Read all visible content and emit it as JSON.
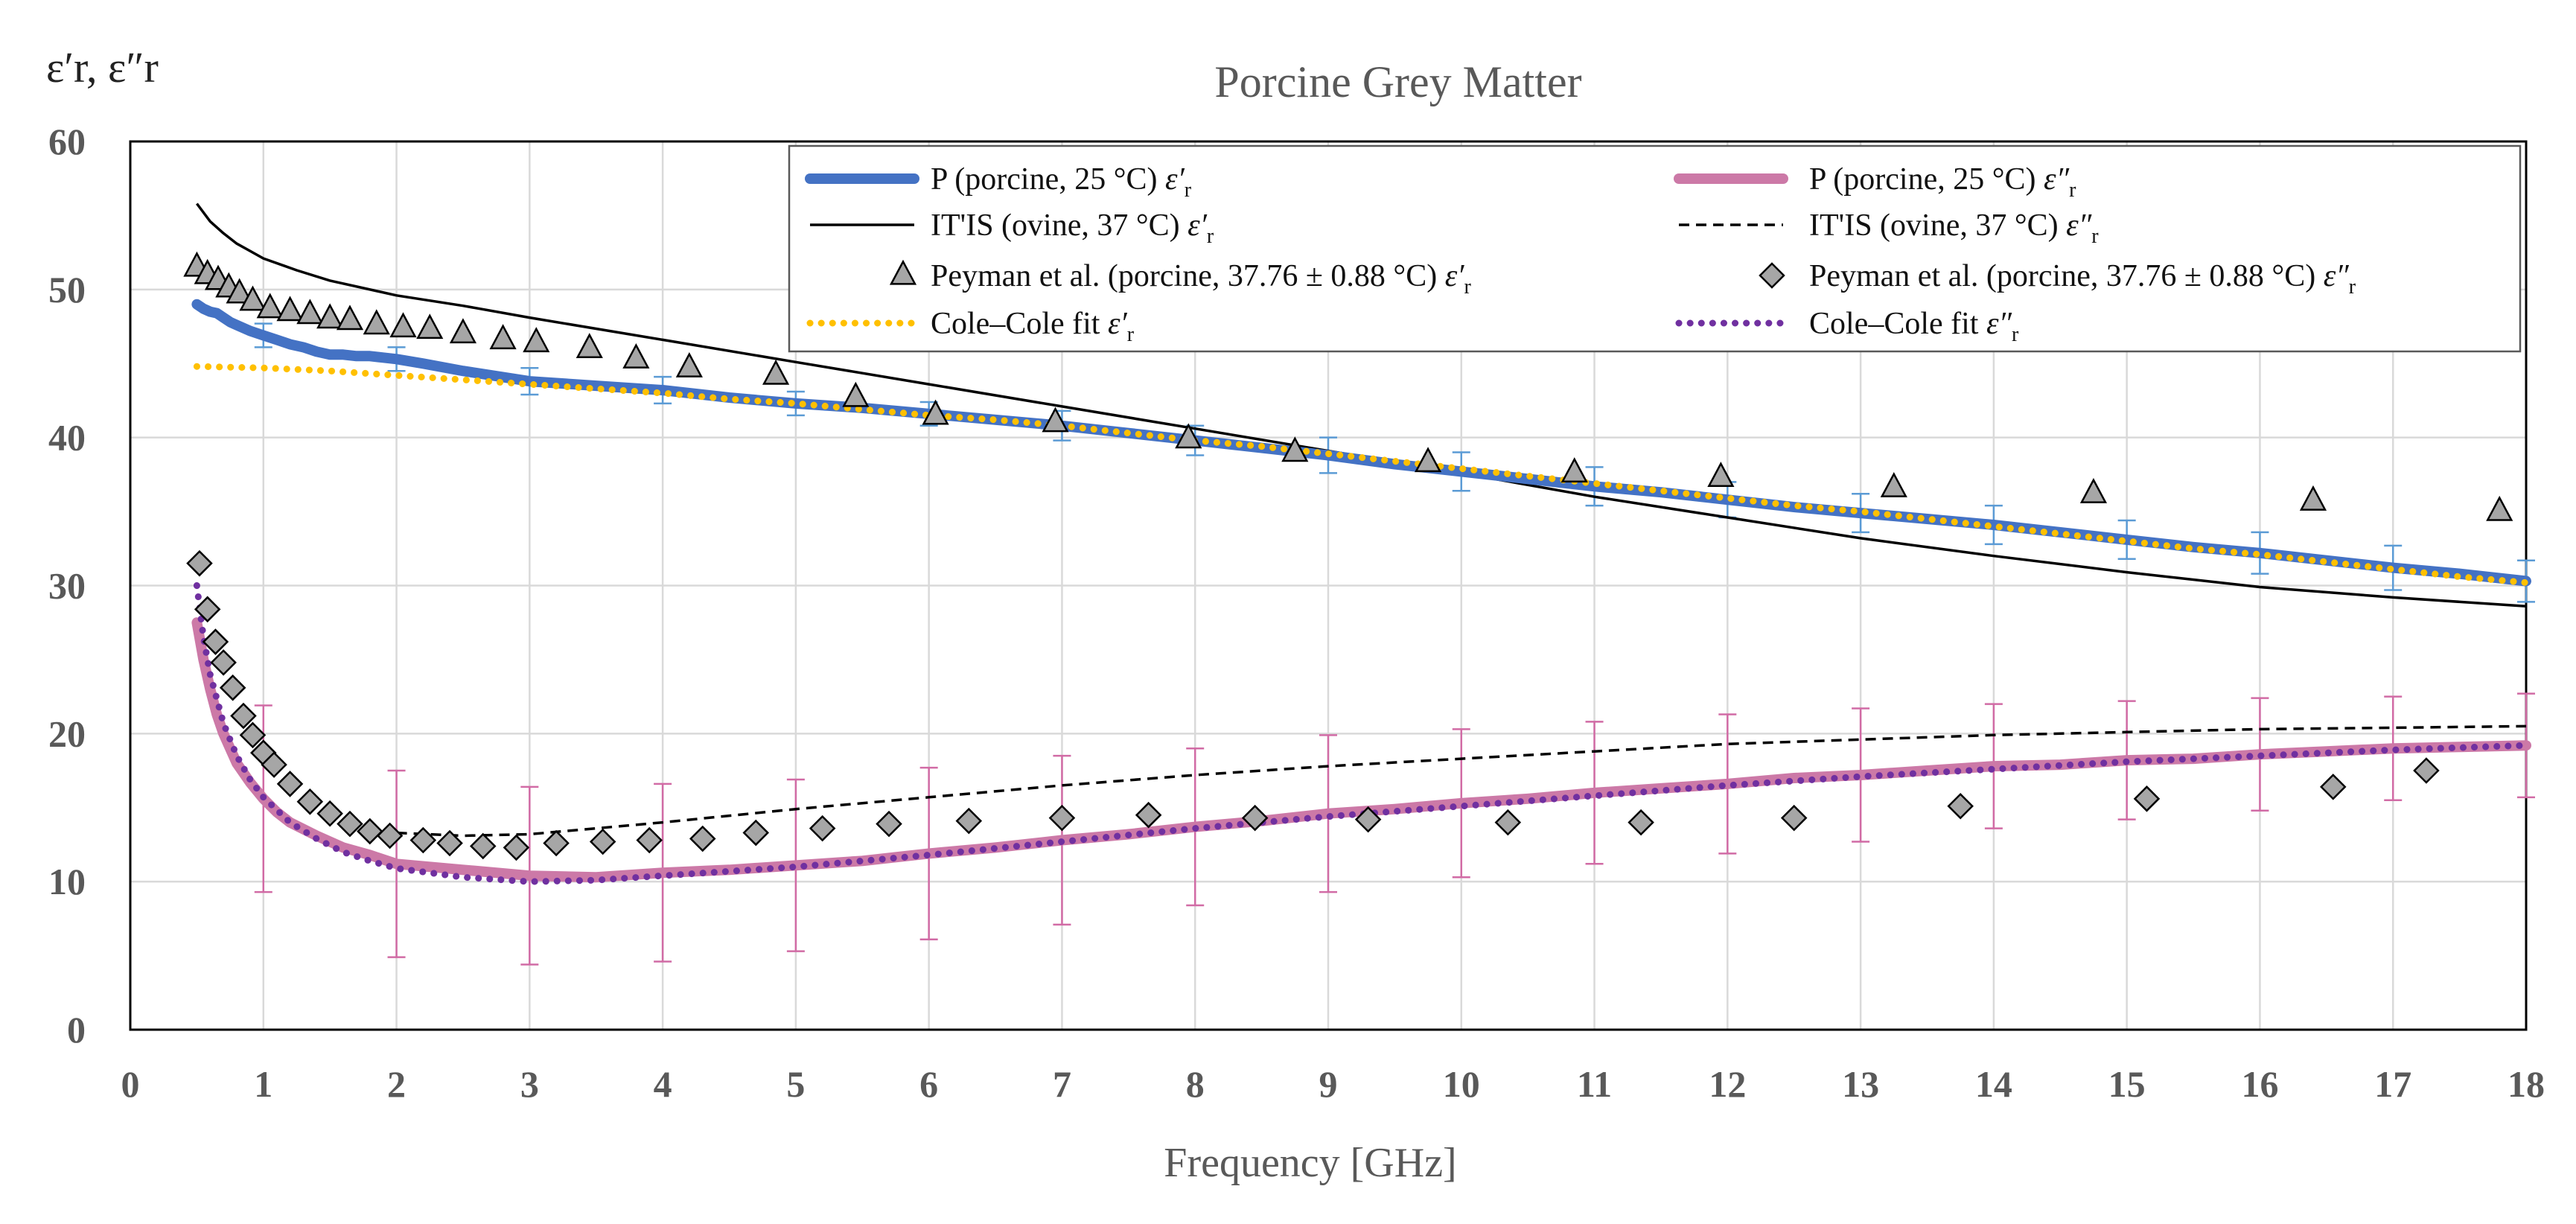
{
  "chart_data": {
    "type": "line",
    "title": "Porcine Grey Matter",
    "xlabel": "Frequency [GHz]",
    "ylabel": "ε′r, ε″r",
    "xlim": [
      0,
      18
    ],
    "ylim": [
      0,
      60
    ],
    "x_ticks": [
      "0",
      "1",
      "2",
      "3",
      "4",
      "5",
      "6",
      "7",
      "8",
      "9",
      "10",
      "11",
      "12",
      "13",
      "14",
      "15",
      "16",
      "17",
      "18"
    ],
    "y_ticks": [
      "0",
      "10",
      "20",
      "30",
      "40",
      "50",
      "60"
    ],
    "grid": true,
    "legend_position": "top",
    "colors": {
      "p_eps1": "#4472C4",
      "p_eps2": "#CC79A7",
      "itis": "#000000",
      "peyman": "#A6A6A6",
      "fit_eps1": "#FFC000",
      "fit_eps2": "#7030A0",
      "err_eps1": "#5B9BD5",
      "err_eps2": "#D16BA5"
    },
    "series": [
      {
        "name": "P (porcine, 25 °C) ε′r",
        "legend_main": "P (porcine, 25 °C) ",
        "legend_sym": "ε′",
        "legend_sub": "r",
        "style": "thick-line",
        "x": [
          0.5,
          0.55,
          0.6,
          0.65,
          0.7,
          0.75,
          0.8,
          0.9,
          1.0,
          1.1,
          1.2,
          1.3,
          1.4,
          1.5,
          1.6,
          1.7,
          1.8,
          1.9,
          2.0,
          2.2,
          2.5,
          3,
          3.5,
          4,
          4.5,
          5,
          5.5,
          6,
          6.5,
          7,
          7.5,
          8,
          8.5,
          9,
          9.5,
          10,
          10.5,
          11,
          11.5,
          12,
          12.5,
          13,
          13.5,
          14,
          14.5,
          15,
          15.5,
          16,
          16.5,
          17,
          17.5,
          18
        ],
        "y": [
          49.0,
          48.7,
          48.5,
          48.4,
          48.1,
          47.8,
          47.6,
          47.2,
          46.9,
          46.6,
          46.3,
          46.1,
          45.8,
          45.6,
          45.6,
          45.5,
          45.5,
          45.4,
          45.3,
          45.0,
          44.5,
          43.8,
          43.5,
          43.2,
          42.7,
          42.3,
          42.0,
          41.6,
          41.2,
          40.8,
          40.3,
          39.8,
          39.3,
          38.8,
          38.2,
          37.7,
          37.2,
          36.7,
          36.3,
          35.8,
          35.3,
          34.9,
          34.5,
          34.1,
          33.6,
          33.1,
          32.6,
          32.2,
          31.7,
          31.2,
          30.8,
          30.3
        ],
        "error_bars": {
          "x": [
            1,
            2,
            3,
            4,
            5,
            6,
            7,
            8,
            9,
            10,
            11,
            12,
            13,
            14,
            15,
            16,
            17,
            18
          ],
          "err": [
            0.8,
            0.8,
            0.9,
            0.9,
            0.8,
            0.8,
            1.0,
            1.0,
            1.2,
            1.3,
            1.3,
            1.2,
            1.3,
            1.3,
            1.3,
            1.4,
            1.5,
            1.4
          ]
        }
      },
      {
        "name": "P (porcine, 25 °C) ε″r",
        "legend_main": "P (porcine, 25 °C) ",
        "legend_sym": "ε″",
        "legend_sub": "r",
        "style": "thick-line",
        "x": [
          0.5,
          0.55,
          0.6,
          0.65,
          0.7,
          0.8,
          0.9,
          1.0,
          1.1,
          1.2,
          1.4,
          1.6,
          1.8,
          2.0,
          2.5,
          3.0,
          3.5,
          4,
          4.5,
          5,
          5.5,
          6,
          6.5,
          7,
          7.5,
          8,
          8.5,
          9,
          9.5,
          10,
          10.5,
          11,
          11.5,
          12,
          12.5,
          13,
          13.5,
          14,
          14.5,
          15,
          15.5,
          16,
          16.5,
          17,
          17.5,
          18
        ],
        "y": [
          27.5,
          25.0,
          23.0,
          21.3,
          20.0,
          18.0,
          16.7,
          15.6,
          14.7,
          14.0,
          13.1,
          12.3,
          11.8,
          11.2,
          10.8,
          10.4,
          10.3,
          10.6,
          10.8,
          11.1,
          11.4,
          11.9,
          12.3,
          12.8,
          13.2,
          13.7,
          14.1,
          14.6,
          14.9,
          15.3,
          15.6,
          16.0,
          16.3,
          16.6,
          17.0,
          17.2,
          17.5,
          17.8,
          17.9,
          18.2,
          18.3,
          18.6,
          18.8,
          19.0,
          19.1,
          19.2
        ],
        "error_bars": {
          "x": [
            1,
            2,
            3,
            4,
            5,
            6,
            7,
            8,
            9,
            10,
            11,
            12,
            13,
            14,
            15,
            16,
            17,
            18
          ],
          "err": [
            6.3,
            6.3,
            6.0,
            6.0,
            5.8,
            5.8,
            5.7,
            5.3,
            5.3,
            5.0,
            4.8,
            4.7,
            4.5,
            4.2,
            4.0,
            3.8,
            3.5,
            3.5
          ]
        }
      },
      {
        "name": "IT'IS (ovine, 37 °C) ε′r",
        "legend_main": "IT'IS (ovine, 37 °C) ",
        "legend_sym": "ε′",
        "legend_sub": "r",
        "style": "thin-line",
        "x": [
          0.5,
          0.6,
          0.7,
          0.8,
          0.9,
          1.0,
          1.25,
          1.5,
          2,
          2.5,
          3,
          4,
          5,
          6,
          7,
          8,
          9,
          10,
          11,
          12,
          13,
          14,
          15,
          16,
          17,
          18
        ],
        "y": [
          55.8,
          54.6,
          53.8,
          53.1,
          52.6,
          52.1,
          51.3,
          50.6,
          49.6,
          48.9,
          48.1,
          46.6,
          45.1,
          43.6,
          42.1,
          40.6,
          39.1,
          37.6,
          36.0,
          34.6,
          33.2,
          32.0,
          30.9,
          29.9,
          29.2,
          28.6
        ]
      },
      {
        "name": "IT'IS (ovine, 37 °C) ε″r",
        "legend_main": "IT'IS (ovine, 37 °C) ",
        "legend_sym": "ε″",
        "legend_sub": "r",
        "style": "dashed-line",
        "x": [
          2,
          2.5,
          3,
          3.5,
          4,
          5,
          6,
          7,
          8,
          9,
          10,
          11,
          12,
          13,
          14,
          15,
          16,
          17,
          18
        ],
        "y": [
          13.3,
          13.1,
          13.2,
          13.6,
          14.0,
          14.9,
          15.7,
          16.5,
          17.2,
          17.8,
          18.3,
          18.8,
          19.3,
          19.6,
          19.9,
          20.1,
          20.3,
          20.4,
          20.5
        ]
      },
      {
        "name": "Peyman et al. (porcine, 37.76 ± 0.88 °C) ε′r",
        "legend_main": "Peyman et al. (porcine, 37.76  ± 0.88  °C) ",
        "legend_sym": "ε′",
        "legend_sub": "r",
        "style": "triangle",
        "x": [
          0.5,
          0.58,
          0.66,
          0.74,
          0.82,
          0.92,
          1.05,
          1.2,
          1.35,
          1.5,
          1.65,
          1.85,
          2.05,
          2.25,
          2.5,
          2.8,
          3.05,
          3.45,
          3.8,
          4.2,
          4.85,
          5.45,
          6.05,
          6.95,
          7.95,
          8.75,
          9.75,
          10.85,
          11.95,
          13.25,
          14.75,
          16.4,
          17.8
        ],
        "y": [
          51.5,
          51.0,
          50.6,
          50.1,
          49.7,
          49.2,
          48.7,
          48.5,
          48.3,
          48.0,
          47.9,
          47.6,
          47.4,
          47.3,
          47.0,
          46.6,
          46.4,
          46.0,
          45.3,
          44.7,
          44.2,
          42.7,
          41.5,
          41.0,
          39.9,
          39.0,
          38.3,
          37.6,
          37.3,
          36.6,
          36.2,
          35.7,
          35.0
        ]
      },
      {
        "name": "Peyman et al. (porcine, 37.76 ± 0.88 °C) ε″r",
        "legend_main": "Peyman et al. (porcine, 37.76  ± 0.88  °C) ",
        "legend_sym": "ε″",
        "legend_sub": "r",
        "style": "diamond",
        "x": [
          0.52,
          0.58,
          0.64,
          0.7,
          0.77,
          0.85,
          0.92,
          1.0,
          1.08,
          1.2,
          1.35,
          1.5,
          1.65,
          1.8,
          1.95,
          2.2,
          2.4,
          2.65,
          2.9,
          3.2,
          3.55,
          3.9,
          4.3,
          4.7,
          5.2,
          5.7,
          6.3,
          7.0,
          7.65,
          8.45,
          9.3,
          10.35,
          11.35,
          12.5,
          13.75,
          15.15,
          16.55,
          17.25
        ],
        "y": [
          31.5,
          28.4,
          26.2,
          24.8,
          23.1,
          21.2,
          19.9,
          18.7,
          17.9,
          16.6,
          15.4,
          14.6,
          13.9,
          13.4,
          13.1,
          12.8,
          12.6,
          12.4,
          12.3,
          12.6,
          12.7,
          12.8,
          12.9,
          13.3,
          13.6,
          13.9,
          14.1,
          14.3,
          14.5,
          14.3,
          14.2,
          14.0,
          14.0,
          14.3,
          15.1,
          15.6,
          16.4,
          17.5
        ]
      },
      {
        "name": "Cole–Cole fit ε′r",
        "legend_main": "Cole–Cole fit  ",
        "legend_sym": "ε′",
        "legend_sub": "r",
        "style": "dotted-line",
        "x": [
          0.5,
          1,
          1.5,
          2,
          2.5,
          3,
          3.5,
          4,
          4.5,
          5,
          5.5,
          6,
          6.5,
          7,
          7.5,
          8,
          8.5,
          9,
          9.5,
          10,
          10.5,
          11,
          11.5,
          12,
          12.5,
          13,
          13.5,
          14,
          14.5,
          15,
          15.5,
          16,
          16.5,
          17,
          17.5,
          18
        ],
        "y": [
          44.8,
          44.7,
          44.5,
          44.2,
          43.9,
          43.6,
          43.3,
          43.0,
          42.6,
          42.3,
          41.9,
          41.5,
          41.2,
          40.8,
          40.3,
          39.8,
          39.4,
          38.9,
          38.4,
          37.9,
          37.4,
          36.9,
          36.4,
          35.9,
          35.4,
          35.0,
          34.5,
          34.0,
          33.5,
          33.0,
          32.5,
          32.1,
          31.6,
          31.1,
          30.6,
          30.2
        ]
      },
      {
        "name": "Cole–Cole fit ε″r",
        "legend_main": "Cole–Cole fit  ",
        "legend_sym": "ε″",
        "legend_sub": "r",
        "style": "dotted-line",
        "x": [
          0.5,
          0.55,
          0.6,
          0.7,
          0.8,
          0.9,
          1.0,
          1.2,
          1.4,
          1.6,
          1.8,
          2.0,
          2.5,
          3,
          3.5,
          4,
          5,
          6,
          7,
          8,
          9,
          10,
          11,
          12,
          13,
          14,
          15,
          16,
          17,
          18
        ],
        "y": [
          30.0,
          26.5,
          24.0,
          20.7,
          18.5,
          16.9,
          15.7,
          14.0,
          12.9,
          12.0,
          11.4,
          10.9,
          10.3,
          10.0,
          10.1,
          10.4,
          11.0,
          11.8,
          12.7,
          13.6,
          14.4,
          15.1,
          15.8,
          16.5,
          17.1,
          17.6,
          18.1,
          18.5,
          18.9,
          19.2
        ]
      }
    ]
  }
}
